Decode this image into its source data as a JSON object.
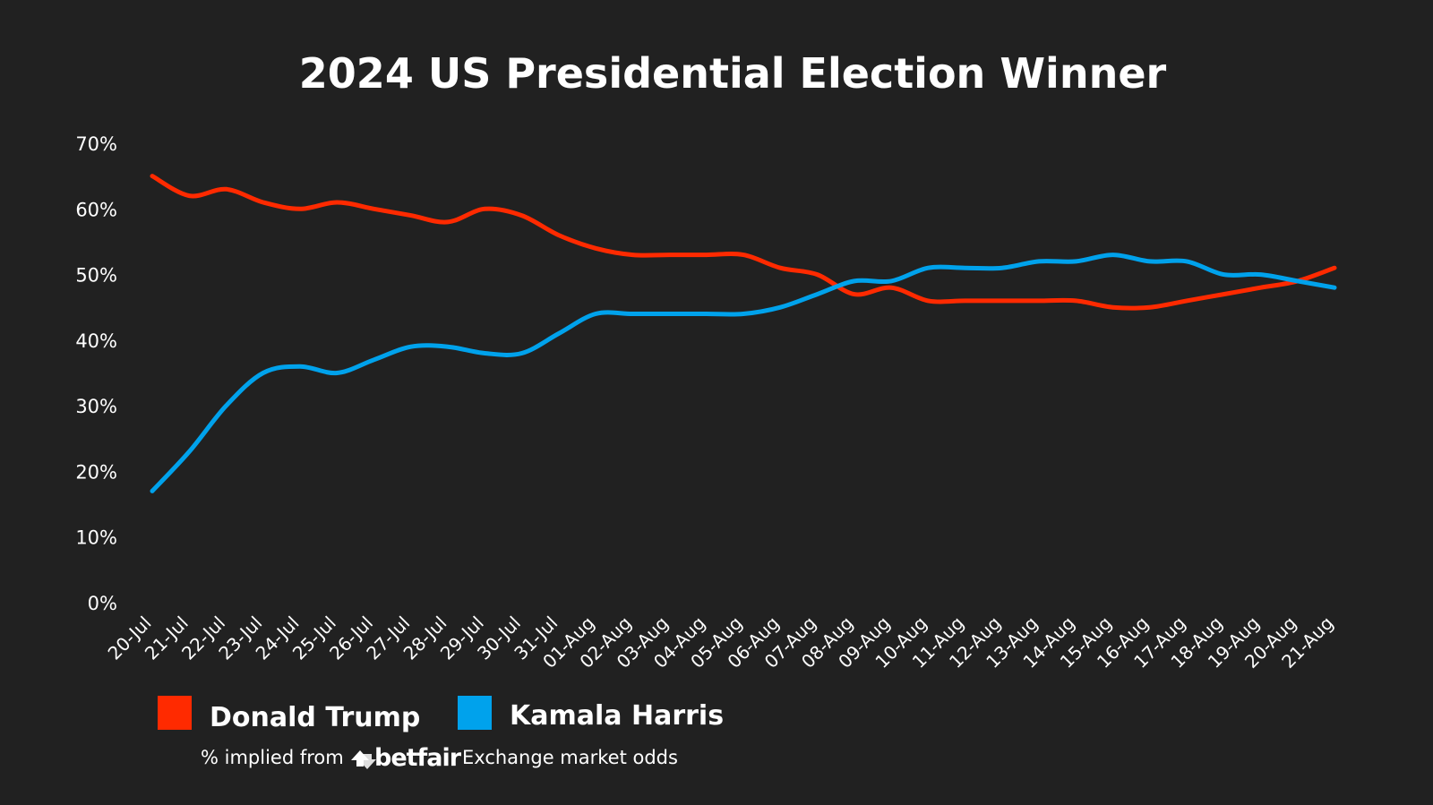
{
  "colors": {
    "background": "#212121",
    "text": "#ffffff",
    "trump": "#ff2a00",
    "harris": "#00a2ec"
  },
  "chart_data": {
    "type": "line",
    "title": "2024 US Presidential Election Winner",
    "xlabel": "",
    "ylabel": "",
    "ylim": [
      0,
      70
    ],
    "yticks": [
      "0%",
      "10%",
      "20%",
      "30%",
      "40%",
      "50%",
      "60%",
      "70%"
    ],
    "grid": false,
    "legend_position": "bottom-left",
    "categories": [
      "20-Jul",
      "21-Jul",
      "22-Jul",
      "23-Jul",
      "24-Jul",
      "25-Jul",
      "26-Jul",
      "27-Jul",
      "28-Jul",
      "29-Jul",
      "30-Jul",
      "31-Jul",
      "01-Aug",
      "02-Aug",
      "03-Aug",
      "04-Aug",
      "05-Aug",
      "06-Aug",
      "07-Aug",
      "08-Aug",
      "09-Aug",
      "10-Aug",
      "11-Aug",
      "12-Aug",
      "13-Aug",
      "14-Aug",
      "15-Aug",
      "16-Aug",
      "17-Aug",
      "18-Aug",
      "19-Aug",
      "20-Aug",
      "21-Aug"
    ],
    "series": [
      {
        "name": "Donald Trump",
        "color": "#ff2a00",
        "values": [
          65,
          62,
          63,
          61,
          60,
          61,
          60,
          59,
          58,
          60,
          59,
          56,
          54,
          53,
          53,
          53,
          53,
          51,
          50,
          47,
          48,
          46,
          46,
          46,
          46,
          46,
          45,
          45,
          46,
          47,
          48,
          49,
          51
        ]
      },
      {
        "name": "Kamala Harris",
        "color": "#00a2ec",
        "values": [
          17,
          23,
          30,
          35,
          36,
          35,
          37,
          39,
          39,
          38,
          38,
          41,
          44,
          44,
          44,
          44,
          44,
          45,
          47,
          49,
          49,
          51,
          51,
          51,
          52,
          52,
          53,
          52,
          52,
          50,
          50,
          49,
          48
        ]
      }
    ],
    "source_note": {
      "prefix": "% implied from",
      "brand": "betfair",
      "suffix": "Exchange market odds"
    }
  }
}
